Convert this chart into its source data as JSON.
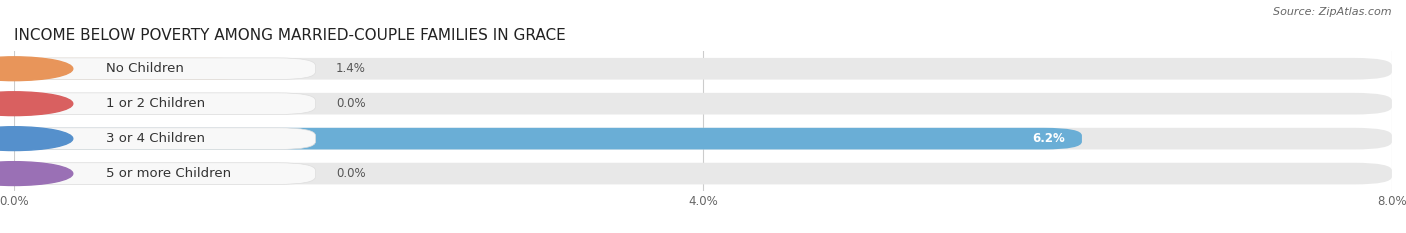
{
  "title": "INCOME BELOW POVERTY AMONG MARRIED-COUPLE FAMILIES IN GRACE",
  "source": "Source: ZipAtlas.com",
  "categories": [
    "No Children",
    "1 or 2 Children",
    "3 or 4 Children",
    "5 or more Children"
  ],
  "values": [
    1.4,
    0.0,
    6.2,
    0.0
  ],
  "bar_colors": [
    "#f5c08a",
    "#f0a0a0",
    "#6aaed6",
    "#c9aed6"
  ],
  "dot_colors": [
    "#e8955a",
    "#d96060",
    "#5590cc",
    "#9a70b5"
  ],
  "bg_bar_color": "#e8e8e8",
  "label_bg_color": "#f5f5f5",
  "xlim": [
    0,
    8.0
  ],
  "xticks": [
    0.0,
    4.0,
    8.0
  ],
  "xtick_labels": [
    "0.0%",
    "4.0%",
    "8.0%"
  ],
  "bar_height": 0.62,
  "label_fontsize": 9.5,
  "value_fontsize": 8.5,
  "title_fontsize": 11,
  "source_fontsize": 8,
  "figure_bg": "#ffffff"
}
